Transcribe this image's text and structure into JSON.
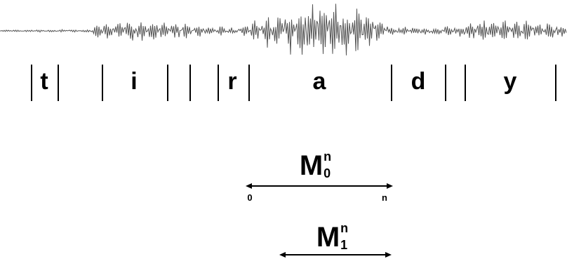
{
  "segments": [
    {
      "phone": "t"
    },
    {
      "phone": ""
    },
    {
      "phone": "i"
    },
    {
      "phone": ""
    },
    {
      "phone": ""
    },
    {
      "phone": "r"
    },
    {
      "phone": "a"
    },
    {
      "phone": "d"
    },
    {
      "phone": ""
    },
    {
      "phone": "y"
    }
  ],
  "windows": [
    {
      "symbol": "M",
      "sup": "n",
      "sub": "0",
      "start_label": "0",
      "end_label": "n"
    },
    {
      "symbol": "M",
      "sup": "n",
      "sub": "1",
      "start_label": "",
      "end_label": ""
    }
  ],
  "colors": {
    "waveform": "#555555",
    "ink": "#000000"
  }
}
